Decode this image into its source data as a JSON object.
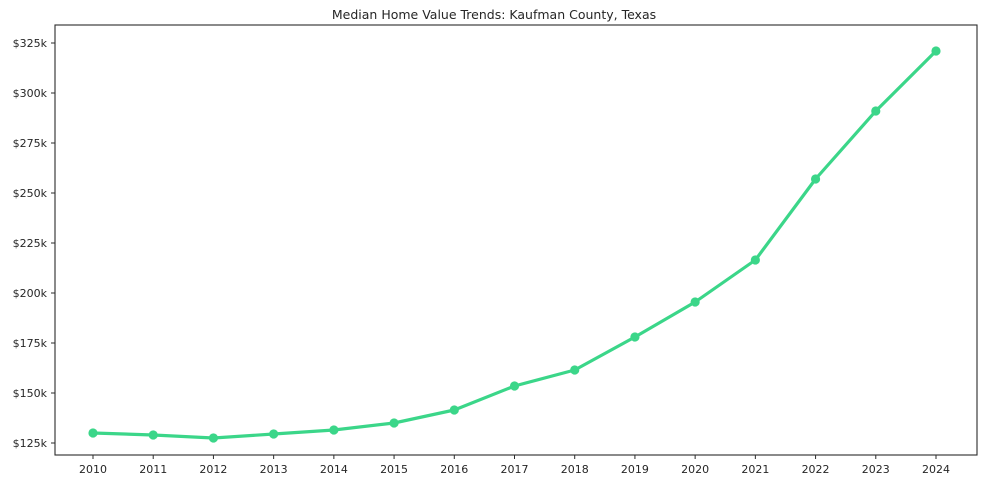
{
  "chart_data": {
    "type": "line",
    "title": "Median Home Value Trends: Kaufman County, Texas",
    "xlabel": "",
    "ylabel": "",
    "x": [
      2010,
      2011,
      2012,
      2013,
      2014,
      2015,
      2016,
      2017,
      2018,
      2019,
      2020,
      2021,
      2022,
      2023,
      2024
    ],
    "series": [
      {
        "name": "Median Home Value",
        "values": [
          130000,
          129000,
          127500,
          129500,
          131500,
          135000,
          141500,
          153500,
          161500,
          178000,
          195500,
          216500,
          257000,
          291000,
          321000
        ]
      }
    ],
    "ylim": [
      119000,
      334000
    ],
    "yticks": [
      125000,
      150000,
      175000,
      200000,
      225000,
      250000,
      275000,
      300000,
      325000
    ],
    "ytick_labels": [
      "$125k",
      "$150k",
      "$175k",
      "$200k",
      "$225k",
      "$250k",
      "$275k",
      "$300k",
      "$325k"
    ],
    "grid": false,
    "legend": "none",
    "line_color": "#3bd689",
    "marker": "circle",
    "spine_color": "#2b2b2b",
    "text_color": "#262626"
  }
}
